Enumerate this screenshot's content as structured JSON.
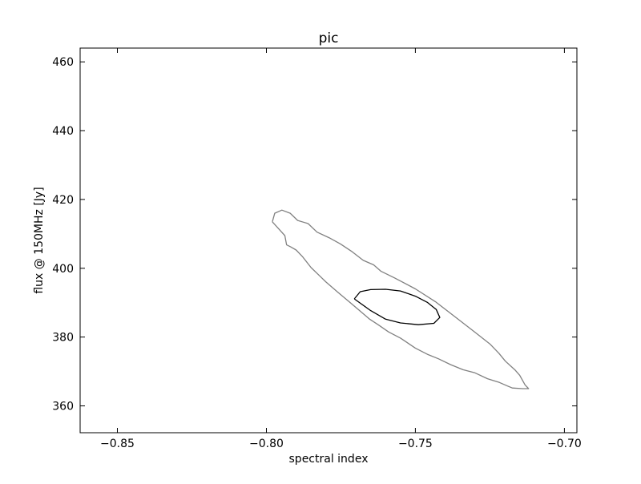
{
  "chart_data": {
    "type": "contour",
    "title": "pic",
    "xlabel": "spectral index",
    "ylabel": "flux @ 150MHz [Jy]",
    "xlim": [
      -0.8625,
      -0.6958
    ],
    "ylim": [
      352.2,
      464.0
    ],
    "xticks": [
      -0.85,
      -0.8,
      -0.75,
      -0.7
    ],
    "xtick_labels": [
      "−0.85",
      "−0.80",
      "−0.75",
      "−0.70"
    ],
    "yticks": [
      360,
      380,
      400,
      420,
      440,
      460
    ],
    "ytick_labels": [
      "360",
      "380",
      "400",
      "420",
      "440",
      "460"
    ],
    "grid": false,
    "series": [
      {
        "color": "#808080",
        "points": [
          [
            -0.798,
            413.5
          ],
          [
            -0.7972,
            416.0
          ],
          [
            -0.7948,
            416.9
          ],
          [
            -0.792,
            416.0
          ],
          [
            -0.7895,
            413.9
          ],
          [
            -0.786,
            413.0
          ],
          [
            -0.783,
            410.5
          ],
          [
            -0.779,
            408.9
          ],
          [
            -0.7752,
            407.1
          ],
          [
            -0.7712,
            404.8
          ],
          [
            -0.7675,
            402.3
          ],
          [
            -0.764,
            401.0
          ],
          [
            -0.7615,
            399.1
          ],
          [
            -0.757,
            397.2
          ],
          [
            -0.75,
            394.0
          ],
          [
            -0.7433,
            390.3
          ],
          [
            -0.737,
            386.1
          ],
          [
            -0.73,
            381.4
          ],
          [
            -0.725,
            378.0
          ],
          [
            -0.722,
            375.3
          ],
          [
            -0.7198,
            373.0
          ],
          [
            -0.7165,
            370.4
          ],
          [
            -0.715,
            368.9
          ],
          [
            -0.7132,
            366.1
          ],
          [
            -0.712,
            365.0
          ],
          [
            -0.714,
            365.0
          ],
          [
            -0.7175,
            365.2
          ],
          [
            -0.7218,
            366.8
          ],
          [
            -0.7258,
            367.9
          ],
          [
            -0.73,
            369.6
          ],
          [
            -0.734,
            370.5
          ],
          [
            -0.7382,
            372.0
          ],
          [
            -0.7423,
            373.7
          ],
          [
            -0.746,
            375.0
          ],
          [
            -0.75,
            376.8
          ],
          [
            -0.755,
            379.7
          ],
          [
            -0.759,
            381.5
          ],
          [
            -0.7625,
            383.6
          ],
          [
            -0.7655,
            385.3
          ],
          [
            -0.769,
            387.9
          ],
          [
            -0.772,
            390.1
          ],
          [
            -0.776,
            393.0
          ],
          [
            -0.78,
            396.0
          ],
          [
            -0.782,
            397.7
          ],
          [
            -0.785,
            400.2
          ],
          [
            -0.7878,
            403.3
          ],
          [
            -0.79,
            405.3
          ],
          [
            -0.7918,
            406.2
          ],
          [
            -0.7932,
            406.8
          ],
          [
            -0.7938,
            409.5
          ],
          [
            -0.7955,
            411.1
          ],
          [
            -0.798,
            413.5
          ]
        ]
      },
      {
        "color": "#000000",
        "points": [
          [
            -0.7705,
            391.1
          ],
          [
            -0.7685,
            393.2
          ],
          [
            -0.765,
            393.8
          ],
          [
            -0.76,
            393.9
          ],
          [
            -0.755,
            393.4
          ],
          [
            -0.75,
            391.9
          ],
          [
            -0.746,
            390.1
          ],
          [
            -0.743,
            388.0
          ],
          [
            -0.7418,
            385.7
          ],
          [
            -0.7438,
            384.0
          ],
          [
            -0.749,
            383.6
          ],
          [
            -0.755,
            384.1
          ],
          [
            -0.76,
            385.2
          ],
          [
            -0.765,
            387.7
          ],
          [
            -0.7705,
            391.1
          ]
        ]
      }
    ]
  }
}
